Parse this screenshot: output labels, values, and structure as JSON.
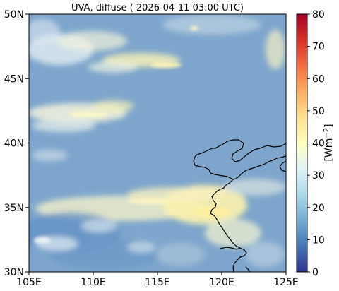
{
  "title": "UVA, diffuse ( 2026-04-11 03:00 UTC)",
  "map": {
    "lon_range": [
      105,
      125
    ],
    "lat_range": [
      30,
      50
    ],
    "x_ticks": [
      "105E",
      "110E",
      "115E",
      "120E",
      "125E"
    ],
    "y_ticks": [
      "50N",
      "45N",
      "40N",
      "35N",
      "30N"
    ],
    "field_color_base": "#7ea6cc"
  },
  "colorbar": {
    "label_main": "[Wm",
    "label_exp": "−2",
    "label_close": "]",
    "min": 0,
    "max": 80,
    "ticks": [
      "0",
      "10",
      "20",
      "30",
      "40",
      "50",
      "60",
      "70",
      "80"
    ],
    "colors": [
      "#313695",
      "#4575b4",
      "#74add1",
      "#abd9e9",
      "#e0f3f8",
      "#ffffbf",
      "#fee090",
      "#fdae61",
      "#f46d43",
      "#d73027",
      "#a50026"
    ]
  }
}
